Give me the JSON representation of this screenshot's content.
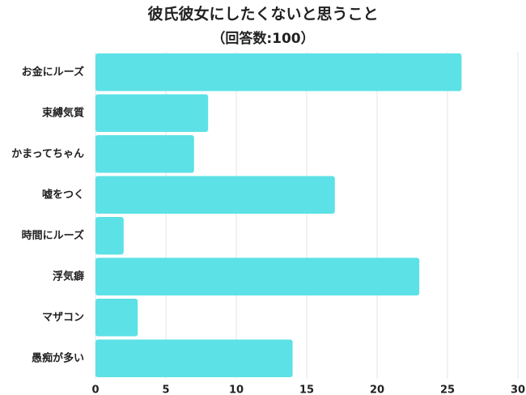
{
  "chart_data": {
    "type": "bar",
    "orientation": "horizontal",
    "title": "彼氏彼女にしたくないと思うこと",
    "subtitle": "（回答数:100）",
    "categories": [
      "お金にルーズ",
      "束縛気質",
      "かまってちゃん",
      "嘘をつく",
      "時間にルーズ",
      "浮気癖",
      "マザコン",
      "愚痴が多い"
    ],
    "values": [
      26,
      8,
      7,
      17,
      2,
      23,
      3,
      14
    ],
    "color": "#5ce1e6",
    "xlim": [
      0,
      30
    ],
    "xticks": [
      0,
      5,
      10,
      15,
      20,
      25,
      30
    ],
    "grid": true
  }
}
